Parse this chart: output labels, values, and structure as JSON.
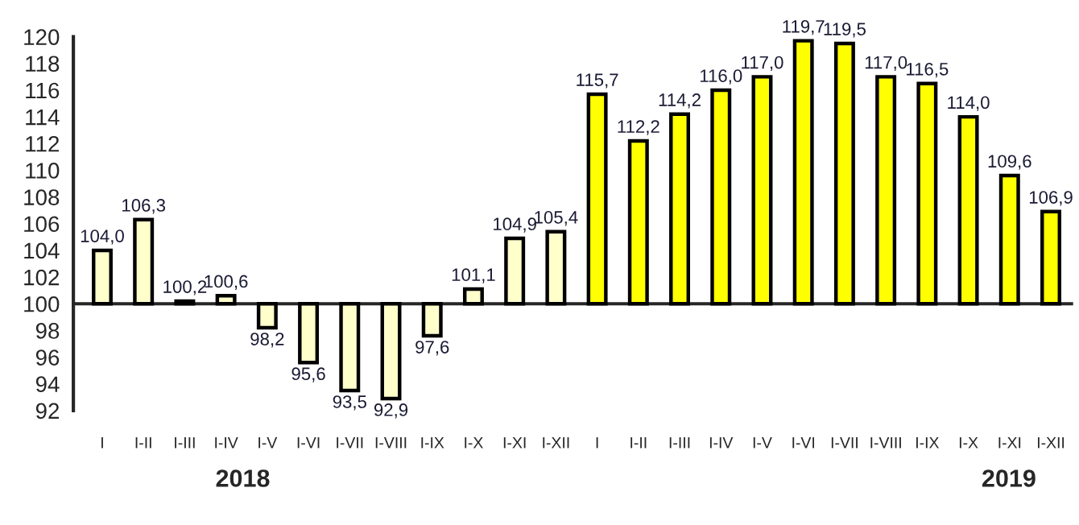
{
  "chart_data": {
    "type": "bar",
    "categories": [
      "I",
      "I-II",
      "I-III",
      "I-IV",
      "I-V",
      "I-VI",
      "I-VII",
      "I-VIII",
      "I-IX",
      "I-X",
      "I-XI",
      "I-XII",
      "I",
      "I-II",
      "I-III",
      "I-IV",
      "I-V",
      "I-VI",
      "I-VII",
      "I-VIII",
      "I-IX",
      "I-X",
      "I-XI",
      "I-XII"
    ],
    "base": [
      100,
      100,
      100,
      100,
      100,
      100,
      100,
      100,
      100,
      100,
      100,
      100,
      100,
      100,
      100,
      100,
      100,
      100,
      100,
      100,
      100,
      100,
      100,
      100
    ],
    "values": [
      4.0,
      6.3,
      0.2,
      0.6,
      -1.8,
      -4.4,
      -6.5,
      -7.1,
      -2.4,
      1.1,
      4.9,
      5.4,
      15.7,
      12.2,
      14.2,
      16.0,
      17.0,
      19.7,
      19.5,
      17.0,
      16.5,
      14.0,
      9.6,
      6.9
    ],
    "value_labels": [
      "104,0",
      "106,3",
      "100,2",
      "100,6",
      "98,2",
      "95,6",
      "93,5",
      "92,9",
      "97,6",
      "101,1",
      "104,9",
      "105,4",
      "115,7",
      "112,2",
      "114,2",
      "116,0",
      "117,0",
      "119,7",
      "119,5",
      "117,0",
      "116,5",
      "114,0",
      "109,6",
      "106,9"
    ],
    "colors": [
      "#ffffcc",
      "#ffffcc",
      "#ffffcc",
      "#ffffcc",
      "#ffffcc",
      "#ffffcc",
      "#ffffcc",
      "#ffffcc",
      "#ffffcc",
      "#ffffcc",
      "#ffffcc",
      "#ffffcc",
      "#ffff00",
      "#ffff00",
      "#ffff00",
      "#ffff00",
      "#ffff00",
      "#ffff00",
      "#ffff00",
      "#ffff00",
      "#ffff00",
      "#ffff00",
      "#ffff00",
      "#ffff00"
    ],
    "ylim": [
      92,
      120
    ],
    "yticks": [
      92,
      94,
      96,
      98,
      100,
      102,
      104,
      106,
      108,
      110,
      112,
      114,
      116,
      118,
      120
    ],
    "annotations": [
      "2018",
      "2019"
    ],
    "legend": false
  }
}
